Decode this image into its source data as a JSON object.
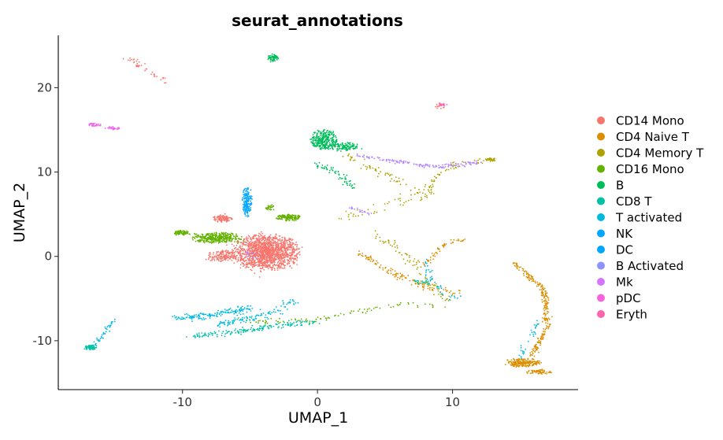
{
  "chart_data": {
    "type": "scatter",
    "title": "seurat_annotations",
    "xlabel": "UMAP_1",
    "ylabel": "UMAP_2",
    "xlim": [
      -19.2,
      19.3
    ],
    "ylim": [
      -15.8,
      26.2
    ],
    "xticks": [
      -10,
      0,
      10
    ],
    "yticks": [
      -10,
      0,
      10,
      20
    ],
    "grid": false,
    "legend_position": "right",
    "series": [
      {
        "name": "CD14 Mono",
        "color": "#F8766D",
        "clusters": [
          {
            "cx": -3.8,
            "cy": 0.5,
            "rx": 2.4,
            "ry": 2.1,
            "n": 1500
          },
          {
            "cx": -7.1,
            "cy": 0.0,
            "rx": 1.0,
            "ry": 0.7,
            "n": 150
          },
          {
            "cx": -7.0,
            "cy": 4.5,
            "rx": 0.7,
            "ry": 0.5,
            "n": 100
          },
          {
            "cx": 9.1,
            "cy": 17.8,
            "rx": 0.4,
            "ry": 0.3,
            "n": 15
          }
        ],
        "paths": [
          {
            "points": [
              [
                -14.0,
                23.5
              ],
              [
                -11.2,
                20.8
              ]
            ],
            "n": 40,
            "spread": 0.2
          }
        ]
      },
      {
        "name": "CD4 Naive T",
        "color": "#DB8E00",
        "clusters": [
          {
            "cx": 15.2,
            "cy": -12.6,
            "rx": 1.3,
            "ry": 0.5,
            "n": 200
          },
          {
            "cx": 16.4,
            "cy": -13.7,
            "rx": 0.9,
            "ry": 0.3,
            "n": 60
          }
        ],
        "paths": [
          {
            "points": [
              [
                14.6,
                -0.9
              ],
              [
                16.8,
                -4.0
              ],
              [
                17.0,
                -8.5
              ],
              [
                15.8,
                -11.8
              ]
            ],
            "n": 250,
            "spread": 0.12
          },
          {
            "points": [
              [
                3.0,
                0.5
              ],
              [
                5.0,
                -1.5
              ],
              [
                7.0,
                -3.0
              ],
              [
                9.0,
                -4.0
              ],
              [
                10.5,
                -4.2
              ]
            ],
            "n": 120,
            "spread": 0.2
          },
          {
            "points": [
              [
                8.0,
                -1.0
              ],
              [
                9.0,
                1.0
              ],
              [
                10.0,
                1.8
              ],
              [
                11.0,
                2.0
              ]
            ],
            "n": 50,
            "spread": 0.1
          }
        ]
      },
      {
        "name": "CD4 Memory T",
        "color": "#AEA200",
        "clusters": [
          {
            "cx": 12.8,
            "cy": 11.5,
            "rx": 0.4,
            "ry": 0.25,
            "n": 30
          }
        ],
        "paths": [
          {
            "points": [
              [
                2.0,
                12.0
              ],
              [
                6.0,
                9.0
              ],
              [
                8.0,
                7.0
              ],
              [
                8.5,
                9.0
              ],
              [
                9.5,
                10.5
              ],
              [
                12.5,
                11.4
              ]
            ],
            "n": 120,
            "spread": 0.2
          },
          {
            "points": [
              [
                4.0,
                3.0
              ],
              [
                6.0,
                1.0
              ],
              [
                8.0,
                -2.5
              ],
              [
                10.0,
                -6.0
              ]
            ],
            "n": 80,
            "spread": 0.25
          },
          {
            "points": [
              [
                2.0,
                4.5
              ],
              [
                5.0,
                6.0
              ],
              [
                8.0,
                7.5
              ]
            ],
            "n": 40,
            "spread": 0.3
          }
        ]
      },
      {
        "name": "CD16 Mono",
        "color": "#64B200",
        "clusters": [
          {
            "cx": -7.5,
            "cy": 2.2,
            "rx": 1.8,
            "ry": 0.6,
            "n": 350
          },
          {
            "cx": -10.0,
            "cy": 2.8,
            "rx": 0.6,
            "ry": 0.3,
            "n": 80
          },
          {
            "cx": -2.2,
            "cy": 4.6,
            "rx": 0.9,
            "ry": 0.4,
            "n": 140
          },
          {
            "cx": -3.5,
            "cy": 5.8,
            "rx": 0.4,
            "ry": 0.3,
            "n": 30
          }
        ],
        "paths": [
          {
            "points": [
              [
                -6.5,
                -7.5
              ],
              [
                -3.0,
                -7.7
              ],
              [
                0.0,
                -7.5
              ],
              [
                3.0,
                -6.6
              ],
              [
                6.0,
                -5.7
              ],
              [
                9.0,
                -5.8
              ]
            ],
            "n": 90,
            "spread": 0.15
          }
        ]
      },
      {
        "name": "B",
        "color": "#00BD5C",
        "clusters": [
          {
            "cx": 0.5,
            "cy": 13.8,
            "rx": 1.0,
            "ry": 1.2,
            "n": 300
          },
          {
            "cx": 2.0,
            "cy": 13.0,
            "rx": 1.2,
            "ry": 0.5,
            "n": 120
          },
          {
            "cx": -3.3,
            "cy": 23.5,
            "rx": 0.4,
            "ry": 0.5,
            "n": 60
          }
        ],
        "paths": [
          {
            "points": [
              [
                -0.2,
                11.0
              ],
              [
                1.5,
                10.0
              ],
              [
                2.5,
                8.0
              ]
            ],
            "n": 60,
            "spread": 0.15
          }
        ]
      },
      {
        "name": "CD8 T",
        "color": "#00C1A7",
        "clusters": [
          {
            "cx": -16.8,
            "cy": -10.8,
            "rx": 0.4,
            "ry": 0.3,
            "n": 80
          }
        ],
        "paths": [
          {
            "points": [
              [
                -9.5,
                -9.5
              ],
              [
                -6.0,
                -9.0
              ],
              [
                -3.0,
                -8.2
              ],
              [
                0.0,
                -7.8
              ]
            ],
            "n": 170,
            "spread": 0.18
          },
          {
            "points": [
              [
                7.2,
                -3.0
              ],
              [
                8.5,
                -3.2
              ]
            ],
            "n": 20,
            "spread": 0.15
          }
        ]
      },
      {
        "name": "T activated",
        "color": "#00BAE0",
        "clusters": [],
        "paths": [
          {
            "points": [
              [
                -10.5,
                -7.3
              ],
              [
                -8.0,
                -7.0
              ],
              [
                -6.0,
                -6.5
              ],
              [
                -5.0,
                -6.0
              ]
            ],
            "n": 160,
            "spread": 0.2
          },
          {
            "points": [
              [
                -7.5,
                -8.2
              ],
              [
                -6.0,
                -7.6
              ],
              [
                -3.5,
                -6.8
              ],
              [
                -1.5,
                -5.3
              ]
            ],
            "n": 110,
            "spread": 0.25
          },
          {
            "points": [
              [
                -16.5,
                -10.5
              ],
              [
                -15.7,
                -9.0
              ],
              [
                -15.0,
                -7.4
              ]
            ],
            "n": 40,
            "spread": 0.12
          },
          {
            "points": [
              [
                15.0,
                -12.0
              ],
              [
                15.6,
                -10.0
              ],
              [
                16.5,
                -7.5
              ]
            ],
            "n": 30,
            "spread": 0.12
          },
          {
            "points": [
              [
                8.0,
                -0.5
              ],
              [
                8.3,
                -2.5
              ],
              [
                9.8,
                -5.0
              ],
              [
                10.6,
                -4.5
              ]
            ],
            "n": 40,
            "spread": 0.15
          }
        ]
      },
      {
        "name": "NK",
        "color": "#00A6FF",
        "clusters": [
          {
            "cx": -5.2,
            "cy": 6.5,
            "rx": 0.35,
            "ry": 1.8,
            "n": 160
          }
        ],
        "paths": []
      },
      {
        "name": "DC",
        "color": "#00A6FF",
        "clusters": [],
        "paths": []
      },
      {
        "name": "B Activated",
        "color": "#B385FF",
        "clusters": [],
        "paths": [
          {
            "points": [
              [
                3.0,
                12.0
              ],
              [
                6.0,
                11.2
              ],
              [
                9.0,
                10.6
              ],
              [
                12.0,
                11.2
              ]
            ],
            "n": 150,
            "spread": 0.12
          },
          {
            "points": [
              [
                2.5,
                5.8
              ],
              [
                4.0,
                5.0
              ]
            ],
            "n": 20,
            "spread": 0.1
          },
          {
            "points": [
              [
                -4.5,
                0.0
              ],
              [
                -5.5,
                0.3
              ]
            ],
            "n": 15,
            "spread": 0.2
          }
        ]
      },
      {
        "name": "Mk",
        "color": "#EF67EB",
        "clusters": [
          {
            "cx": -16.5,
            "cy": 15.6,
            "rx": 0.5,
            "ry": 0.2,
            "n": 40
          },
          {
            "cx": -15.2,
            "cy": 15.2,
            "rx": 0.5,
            "ry": 0.2,
            "n": 30
          }
        ],
        "paths": []
      },
      {
        "name": "pDC",
        "color": "#FF63B6",
        "clusters": [
          {
            "cx": 9.2,
            "cy": 18.0,
            "rx": 0.4,
            "ry": 0.2,
            "n": 20
          }
        ],
        "paths": []
      },
      {
        "name": "Eryth",
        "color": "#FF63B6",
        "clusters": [],
        "paths": []
      }
    ],
    "legend": [
      {
        "label": "CD14 Mono",
        "color": "#F8766D"
      },
      {
        "label": "CD4 Naive T",
        "color": "#DB8E00"
      },
      {
        "label": "CD4 Memory T",
        "color": "#AEA200"
      },
      {
        "label": "CD16 Mono",
        "color": "#64B200"
      },
      {
        "label": "B",
        "color": "#00BD5C"
      },
      {
        "label": "CD8 T",
        "color": "#00C1A7"
      },
      {
        "label": "T activated",
        "color": "#00BADE"
      },
      {
        "label": "NK",
        "color": "#00A6FF"
      },
      {
        "label": "DC",
        "color": "#00A6FF"
      },
      {
        "label": "B Activated",
        "color": "#8B93FF"
      },
      {
        "label": "Mk",
        "color": "#D575FE"
      },
      {
        "label": "pDC",
        "color": "#F962DD"
      },
      {
        "label": "Eryth",
        "color": "#FF65AC"
      }
    ]
  }
}
